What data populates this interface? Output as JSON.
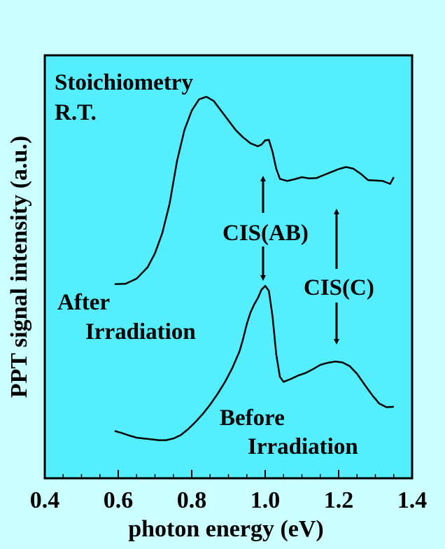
{
  "chart_data": {
    "type": "line",
    "xlabel": "photon energy (eV)",
    "ylabel": "PPT signal intensity (a.u.)",
    "xlim": [
      0.4,
      1.4
    ],
    "ylim": [
      0,
      1
    ],
    "x_ticks": [
      "0.4",
      "0.6",
      "0.8",
      "1.0",
      "1.2",
      "1.4"
    ],
    "x_tick_values": [
      0.4,
      0.6,
      0.8,
      1.0,
      1.2,
      1.4
    ],
    "y_tick_labels_shown": false,
    "grid": false,
    "colors": {
      "background": "#CCFFFF",
      "plot_area": "#55EEFF",
      "line": "#000000"
    },
    "series": [
      {
        "name": "After Irradiation",
        "x": [
          0.59,
          0.62,
          0.65,
          0.68,
          0.7,
          0.72,
          0.74,
          0.76,
          0.78,
          0.8,
          0.82,
          0.84,
          0.86,
          0.88,
          0.9,
          0.92,
          0.94,
          0.96,
          0.98,
          0.99,
          1.0,
          1.01,
          1.02,
          1.03,
          1.04,
          1.06,
          1.08,
          1.1,
          1.12,
          1.14,
          1.16,
          1.18,
          1.2,
          1.22,
          1.24,
          1.26,
          1.28,
          1.3,
          1.32,
          1.34,
          1.35
        ],
        "y": [
          0.459,
          0.46,
          0.472,
          0.499,
          0.532,
          0.58,
          0.65,
          0.75,
          0.823,
          0.869,
          0.896,
          0.902,
          0.892,
          0.869,
          0.846,
          0.823,
          0.806,
          0.792,
          0.785,
          0.789,
          0.799,
          0.8,
          0.772,
          0.732,
          0.708,
          0.703,
          0.707,
          0.712,
          0.709,
          0.71,
          0.717,
          0.724,
          0.731,
          0.736,
          0.732,
          0.72,
          0.705,
          0.704,
          0.703,
          0.696,
          0.712
        ]
      },
      {
        "name": "Before Irradiation",
        "x": [
          0.59,
          0.61,
          0.63,
          0.65,
          0.67,
          0.69,
          0.71,
          0.73,
          0.75,
          0.77,
          0.79,
          0.81,
          0.83,
          0.85,
          0.87,
          0.89,
          0.91,
          0.93,
          0.94,
          0.95,
          0.96,
          0.97,
          0.98,
          0.99,
          1.0,
          1.01,
          1.02,
          1.03,
          1.04,
          1.05,
          1.07,
          1.09,
          1.11,
          1.13,
          1.15,
          1.17,
          1.19,
          1.21,
          1.23,
          1.25,
          1.27,
          1.29,
          1.31,
          1.33,
          1.35
        ],
        "y": [
          0.112,
          0.107,
          0.101,
          0.096,
          0.094,
          0.092,
          0.09,
          0.09,
          0.094,
          0.102,
          0.116,
          0.133,
          0.152,
          0.174,
          0.199,
          0.227,
          0.26,
          0.3,
          0.33,
          0.365,
          0.392,
          0.411,
          0.426,
          0.446,
          0.455,
          0.443,
          0.383,
          0.293,
          0.24,
          0.228,
          0.235,
          0.243,
          0.249,
          0.258,
          0.268,
          0.273,
          0.276,
          0.274,
          0.265,
          0.247,
          0.222,
          0.198,
          0.177,
          0.168,
          0.169
        ]
      }
    ],
    "annotations": {
      "condition_line1": "Stoichiometry",
      "condition_line2": "R.T.",
      "after_line1": "After",
      "after_line2": "Irradiation",
      "before_line1": "Before",
      "before_line2": "Irradiation",
      "cis_ab": "CIS(AB)",
      "cis_c": "CIS(C)"
    }
  }
}
